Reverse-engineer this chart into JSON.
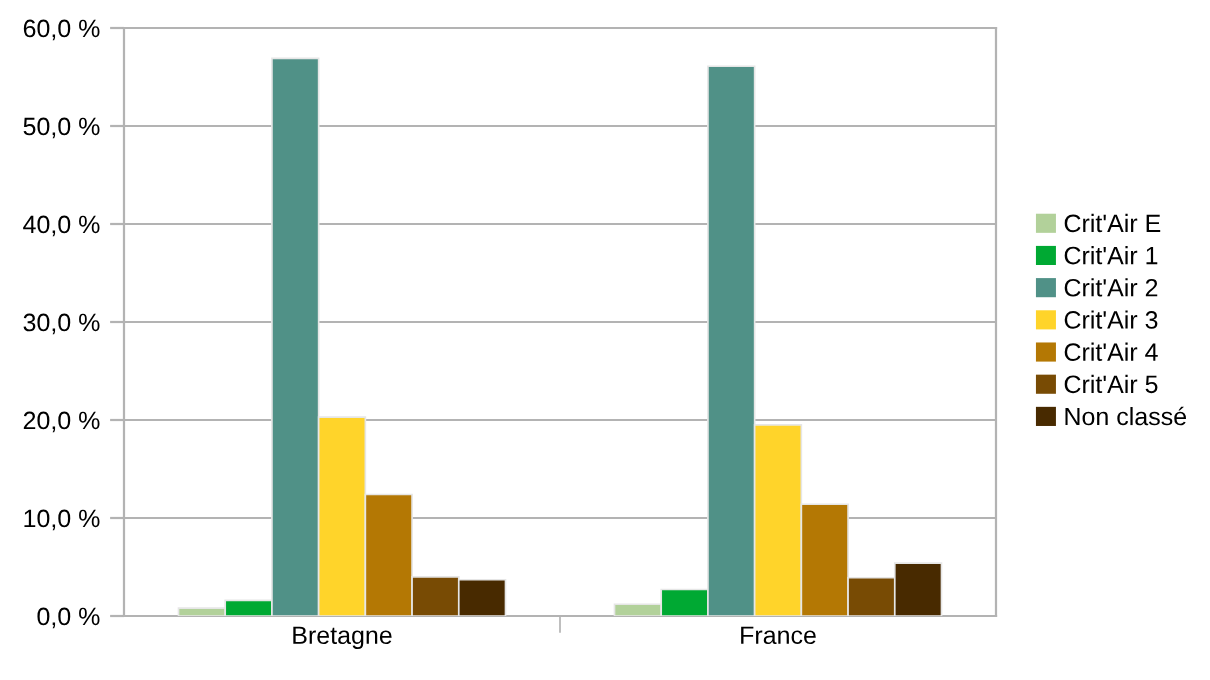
{
  "chart_data": {
    "type": "bar",
    "categories": [
      "Bretagne",
      "France"
    ],
    "series": [
      {
        "name": "Crit'Air E",
        "color": "#b2d19a",
        "values": [
          0.8,
          1.2
        ]
      },
      {
        "name": "Crit'Air 1",
        "color": "#00a933",
        "values": [
          1.6,
          2.7
        ]
      },
      {
        "name": "Crit'Air 2",
        "color": "#509187",
        "values": [
          56.9,
          56.1
        ]
      },
      {
        "name": "Crit'Air 3",
        "color": "#ffd42a",
        "values": [
          20.3,
          19.5
        ]
      },
      {
        "name": "Crit'Air 4",
        "color": "#b47804",
        "values": [
          12.4,
          11.4
        ]
      },
      {
        "name": "Crit'Air 5",
        "color": "#784b04",
        "values": [
          4.0,
          3.9
        ]
      },
      {
        "name": "Non classé",
        "color": "#482a00",
        "values": [
          3.7,
          5.4
        ]
      }
    ],
    "ylim": [
      0,
      60
    ],
    "yticks": [
      {
        "value": 0,
        "label": "0,0 %"
      },
      {
        "value": 10,
        "label": "10,0 %"
      },
      {
        "value": 20,
        "label": "20,0 %"
      },
      {
        "value": 30,
        "label": "30,0 %"
      },
      {
        "value": 40,
        "label": "40,0 %"
      },
      {
        "value": 50,
        "label": "50,0 %"
      },
      {
        "value": 60,
        "label": "60,0 %"
      }
    ],
    "grid": "y",
    "legend": "right"
  }
}
